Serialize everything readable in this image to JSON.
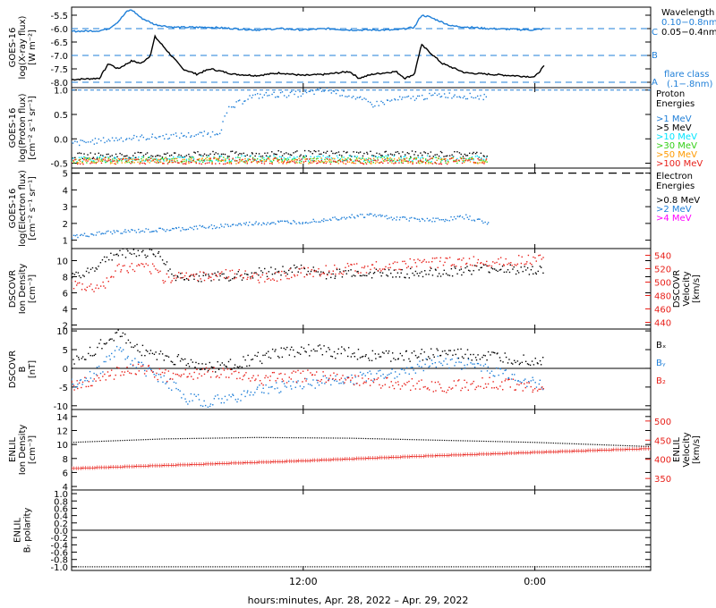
{
  "colors": {
    "black": "#000000",
    "blue": "#1f7fd8",
    "cyan": "#00e5ff",
    "green": "#34d016",
    "orange": "#ff9a00",
    "red": "#e8201a",
    "magenta": "#ff00ff"
  },
  "chart_data": [
    {
      "type": "line",
      "panel": "xray",
      "ylabel": [
        "GOES-16",
        "log(X-ray flux)",
        "[W m⁻²]"
      ],
      "yticks": [
        "-5.5",
        "-6.0",
        "-6.5",
        "-7.0",
        "-7.5",
        "-8.0"
      ],
      "ylim": [
        -8.2,
        -5.2
      ],
      "flare_levels": [
        {
          "label": "C",
          "value": -6.0
        },
        {
          "label": "B",
          "value": -7.0
        },
        {
          "label": "A",
          "value": -8.0
        }
      ],
      "legend_title": "Wavelength",
      "series": [
        {
          "name": "0.10-0.8nm",
          "color": "#000000",
          "values": [
            [
              0,
              -7.9
            ],
            [
              0.06,
              -7.85
            ],
            [
              0.08,
              -7.3
            ],
            [
              0.1,
              -7.5
            ],
            [
              0.13,
              -7.2
            ],
            [
              0.15,
              -7.3
            ],
            [
              0.17,
              -7.0
            ],
            [
              0.18,
              -6.3
            ],
            [
              0.21,
              -6.9
            ],
            [
              0.24,
              -7.5
            ],
            [
              0.27,
              -7.7
            ],
            [
              0.3,
              -7.5
            ],
            [
              0.35,
              -7.7
            ],
            [
              0.4,
              -7.75
            ],
            [
              0.45,
              -7.65
            ],
            [
              0.5,
              -7.75
            ],
            [
              0.55,
              -7.7
            ],
            [
              0.6,
              -7.6
            ],
            [
              0.62,
              -7.85
            ],
            [
              0.65,
              -7.7
            ],
            [
              0.7,
              -7.6
            ],
            [
              0.72,
              -7.85
            ],
            [
              0.74,
              -7.7
            ],
            [
              0.755,
              -6.6
            ],
            [
              0.8,
              -7.3
            ],
            [
              0.85,
              -7.65
            ],
            [
              0.9,
              -7.7
            ],
            [
              0.95,
              -7.75
            ],
            [
              1.0,
              -7.8
            ],
            [
              1.02,
              -7.4
            ]
          ]
        },
        {
          "name": "0.05-0.4nm",
          "color": "#1f7fd8",
          "values": [
            [
              0,
              -6.1
            ],
            [
              0.06,
              -6.08
            ],
            [
              0.08,
              -6.0
            ],
            [
              0.1,
              -5.75
            ],
            [
              0.12,
              -5.35
            ],
            [
              0.13,
              -5.3
            ],
            [
              0.15,
              -5.6
            ],
            [
              0.18,
              -5.85
            ],
            [
              0.22,
              -5.95
            ],
            [
              0.3,
              -5.95
            ],
            [
              0.35,
              -6.0
            ],
            [
              0.4,
              -6.05
            ],
            [
              0.45,
              -6.0
            ],
            [
              0.5,
              -6.05
            ],
            [
              0.55,
              -6.0
            ],
            [
              0.6,
              -6.05
            ],
            [
              0.7,
              -6.05
            ],
            [
              0.74,
              -5.95
            ],
            [
              0.755,
              -5.5
            ],
            [
              0.77,
              -5.55
            ],
            [
              0.82,
              -5.9
            ],
            [
              0.9,
              -6.0
            ],
            [
              1.0,
              -6.05
            ],
            [
              1.02,
              -6.0
            ]
          ]
        }
      ],
      "annotations": [
        "flare class",
        "(.1−.8nm)"
      ]
    },
    {
      "type": "scatter",
      "panel": "protons",
      "ylabel": [
        "GOES-16",
        "log(Proton flux)",
        "[cm⁻² s⁻¹ sr⁻¹]"
      ],
      "yticks": [
        "1.0",
        "0.5",
        "0.0",
        "-0.5"
      ],
      "ylim": [
        -0.6,
        1.05
      ],
      "legend_title": [
        "Proton",
        "Energies"
      ],
      "series": [
        {
          "name": ">1 MeV",
          "color": "#1f7fd8",
          "values": [
            [
              0,
              -0.1
            ],
            [
              0.1,
              0.0
            ],
            [
              0.2,
              0.05
            ],
            [
              0.3,
              0.1
            ],
            [
              0.32,
              0.15
            ],
            [
              0.34,
              0.6
            ],
            [
              0.38,
              0.85
            ],
            [
              0.42,
              0.9
            ],
            [
              0.5,
              0.92
            ],
            [
              0.55,
              1.0
            ],
            [
              0.6,
              0.9
            ],
            [
              0.65,
              0.7
            ],
            [
              0.7,
              0.8
            ],
            [
              0.8,
              0.9
            ],
            [
              0.85,
              0.88
            ],
            [
              0.9,
              0.85
            ]
          ]
        },
        {
          "name": ">5 MeV",
          "color": "#000000",
          "values": [
            [
              0,
              -0.35
            ],
            [
              0.5,
              -0.3
            ],
            [
              0.9,
              -0.32
            ]
          ]
        },
        {
          "name": ">10 MeV",
          "color": "#00e5ff",
          "values": [
            [
              0,
              -0.42
            ],
            [
              0.5,
              -0.4
            ],
            [
              0.9,
              -0.41
            ]
          ]
        },
        {
          "name": ">30 MeV",
          "color": "#34d016",
          "values": [
            [
              0,
              -0.44
            ],
            [
              0.5,
              -0.43
            ],
            [
              0.9,
              -0.44
            ]
          ]
        },
        {
          "name": ">50 MeV",
          "color": "#ff9a00",
          "values": [
            [
              0,
              -0.45
            ],
            [
              0.5,
              -0.45
            ],
            [
              0.9,
              -0.45
            ]
          ]
        },
        {
          "name": ">100 MeV",
          "color": "#e8201a",
          "values": [
            [
              0,
              -0.46
            ],
            [
              0.5,
              -0.46
            ],
            [
              0.9,
              -0.46
            ]
          ]
        }
      ]
    },
    {
      "type": "scatter",
      "panel": "electrons",
      "ylabel": [
        "GOES-16",
        "log(Electron flux)",
        "[cm⁻² s⁻¹ sr⁻¹]"
      ],
      "yticks": [
        "5",
        "4",
        "3",
        "2",
        "1"
      ],
      "ylim": [
        0.5,
        5.3
      ],
      "threshold": 5.0,
      "legend_title": [
        "Electron",
        "Energies"
      ],
      "series": [
        {
          "name": ">0.8 MeV",
          "color": "#000000",
          "values": []
        },
        {
          "name": ">2 MeV",
          "color": "#1f7fd8",
          "values": [
            [
              0,
              1.2
            ],
            [
              0.1,
              1.5
            ],
            [
              0.2,
              1.6
            ],
            [
              0.3,
              1.8
            ],
            [
              0.4,
              2.0
            ],
            [
              0.5,
              2.1
            ],
            [
              0.6,
              2.4
            ],
            [
              0.65,
              2.5
            ],
            [
              0.7,
              2.3
            ],
            [
              0.8,
              2.2
            ],
            [
              0.85,
              2.4
            ],
            [
              0.9,
              2.0
            ]
          ]
        },
        {
          "name": ">4 MeV",
          "color": "#ff00ff",
          "values": []
        }
      ]
    },
    {
      "type": "scatter",
      "panel": "dscovr-plasma",
      "ylabel": [
        "DSCOVR",
        "Ion Density",
        "[cm⁻³]"
      ],
      "yticks": [
        "10",
        "8",
        "6",
        "4",
        "2"
      ],
      "ylim": [
        1.5,
        11.5
      ],
      "ylabel_right": [
        "DSCOVR",
        "Velocity",
        "[km/s]"
      ],
      "yticks_right": [
        "540",
        "520",
        "500",
        "480",
        "460",
        "440"
      ],
      "ylim_right": [
        430,
        550
      ],
      "series": [
        {
          "name": "Density",
          "color": "#000000",
          "values": [
            [
              0,
              8
            ],
            [
              0.05,
              9
            ],
            [
              0.08,
              10.5
            ],
            [
              0.12,
              11
            ],
            [
              0.18,
              11
            ],
            [
              0.2,
              10
            ],
            [
              0.22,
              8
            ],
            [
              0.3,
              8
            ],
            [
              0.35,
              8
            ],
            [
              0.4,
              8.5
            ],
            [
              0.5,
              9
            ],
            [
              0.55,
              8.2
            ],
            [
              0.6,
              8.5
            ],
            [
              0.7,
              8.4
            ],
            [
              0.8,
              8.5
            ],
            [
              0.9,
              9
            ],
            [
              1.02,
              8.8
            ]
          ]
        },
        {
          "name": "Velocity",
          "color": "#e8201a",
          "values": [
            [
              0,
              495
            ],
            [
              0.05,
              490
            ],
            [
              0.08,
              500
            ],
            [
              0.1,
              520
            ],
            [
              0.18,
              520
            ],
            [
              0.2,
              505
            ],
            [
              0.25,
              510
            ],
            [
              0.3,
              510
            ],
            [
              0.35,
              512
            ],
            [
              0.4,
              505
            ],
            [
              0.5,
              515
            ],
            [
              0.6,
              520
            ],
            [
              0.7,
              525
            ],
            [
              0.8,
              530
            ],
            [
              0.9,
              530
            ],
            [
              1.02,
              535
            ]
          ]
        }
      ]
    },
    {
      "type": "scatter",
      "panel": "dscovr-field",
      "ylabel": [
        "DSCOVR",
        "B",
        "[nT]"
      ],
      "yticks": [
        "10",
        "5",
        "0",
        "-5",
        "-10"
      ],
      "ylim": [
        -11,
        10.5
      ],
      "series": [
        {
          "name": "Bx",
          "color": "#000000",
          "values": [
            [
              0,
              1
            ],
            [
              0.05,
              5
            ],
            [
              0.1,
              9
            ],
            [
              0.15,
              5
            ],
            [
              0.2,
              3
            ],
            [
              0.3,
              0
            ],
            [
              0.38,
              2
            ],
            [
              0.45,
              4
            ],
            [
              0.5,
              5
            ],
            [
              0.6,
              4
            ],
            [
              0.7,
              3
            ],
            [
              0.8,
              4
            ],
            [
              0.9,
              3
            ],
            [
              1.02,
              2
            ]
          ]
        },
        {
          "name": "By",
          "color": "#1f7fd8",
          "values": [
            [
              0,
              -4
            ],
            [
              0.05,
              -2
            ],
            [
              0.1,
              5
            ],
            [
              0.15,
              0
            ],
            [
              0.2,
              -3
            ],
            [
              0.25,
              -8
            ],
            [
              0.3,
              -9
            ],
            [
              0.35,
              -8
            ],
            [
              0.4,
              -6
            ],
            [
              0.5,
              -4
            ],
            [
              0.6,
              -3
            ],
            [
              0.7,
              -1
            ],
            [
              0.8,
              2
            ],
            [
              0.9,
              0
            ],
            [
              1.02,
              -5
            ]
          ]
        },
        {
          "name": "Bz",
          "color": "#e8201a",
          "values": [
            [
              0,
              -5
            ],
            [
              0.05,
              -3
            ],
            [
              0.1,
              -1
            ],
            [
              0.15,
              0
            ],
            [
              0.2,
              -2
            ],
            [
              0.3,
              -1
            ],
            [
              0.4,
              -3
            ],
            [
              0.5,
              -2
            ],
            [
              0.6,
              -3
            ],
            [
              0.7,
              -4
            ],
            [
              0.8,
              -5
            ],
            [
              0.9,
              -4
            ],
            [
              1.02,
              -5
            ]
          ]
        }
      ]
    },
    {
      "type": "line",
      "panel": "enlil-plasma",
      "ylabel": [
        "ENLIL",
        "Ion Density",
        "[cm⁻³]"
      ],
      "yticks": [
        "14",
        "12",
        "10",
        "8",
        "6",
        "4"
      ],
      "ylim": [
        3.5,
        15
      ],
      "ylabel_right": [
        "ENLIL",
        "Velocity",
        "[km/s]"
      ],
      "yticks_right": [
        "500",
        "450",
        "400",
        "350"
      ],
      "ylim_right": [
        320,
        530
      ],
      "series": [
        {
          "name": "Density",
          "color": "#000000",
          "values": [
            [
              0,
              10.3
            ],
            [
              0.2,
              10.8
            ],
            [
              0.4,
              11.0
            ],
            [
              0.6,
              10.9
            ],
            [
              0.8,
              10.6
            ],
            [
              1.0,
              10.3
            ],
            [
              1.25,
              9.7
            ]
          ]
        },
        {
          "name": "Velocity",
          "color": "#e8201a",
          "values": [
            [
              0,
              378
            ],
            [
              0.25,
              388
            ],
            [
              0.5,
              398
            ],
            [
              0.75,
              410
            ],
            [
              1.0,
              420
            ],
            [
              1.25,
              430
            ]
          ]
        }
      ]
    },
    {
      "type": "line",
      "panel": "enlil-polarity",
      "ylabel": [
        "ENLIL",
        "Bᵣ polarity"
      ],
      "yticks": [
        "1.0",
        "0.8",
        "0.6",
        "0.4",
        "0.2",
        "0.0",
        "-0.2",
        "-0.4",
        "-0.6",
        "-0.8",
        "-1.0"
      ],
      "ylim": [
        -1.1,
        1.1
      ],
      "series": [
        {
          "name": "Polarity",
          "color": "#000000",
          "values": [
            [
              0,
              -1
            ],
            [
              0.5,
              -1
            ],
            [
              1.0,
              -1
            ],
            [
              1.25,
              -1
            ]
          ]
        }
      ]
    }
  ],
  "x_axis": {
    "ticks": [
      "12:00",
      "0:00"
    ],
    "label": "hours:minutes, Apr. 28, 2022 – Apr. 29, 2022"
  },
  "legend_labels": {
    "wavelength": "Wavelength",
    "w1": "0.10−0.8nm",
    "w2": "0.05−0.4nm",
    "flare": "flare class",
    "flare_sub": "(.1−.8nm)",
    "C": "C",
    "B": "B",
    "A": "A",
    "proton1": "Proton",
    "proton2": "Energies",
    "p1": ">1 MeV",
    "p5": ">5 MeV",
    "p10": ">10 MeV",
    "p30": ">30 MeV",
    "p50": ">50 MeV",
    "p100": ">100 MeV",
    "electron1": "Electron",
    "electron2": "Energies",
    "e08": ">0.8 MeV",
    "e2": ">2 MeV",
    "e4": ">4 MeV",
    "bx": "Bₓ",
    "by": "Bᵧ",
    "bz": "B₂"
  }
}
